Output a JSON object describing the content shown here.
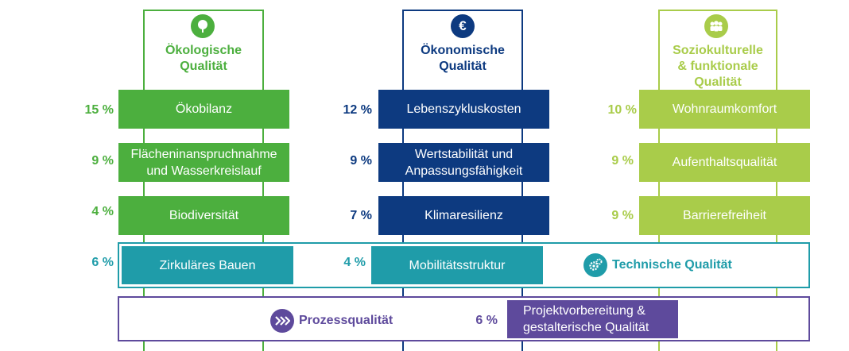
{
  "colors": {
    "ecological": "#4caf3e",
    "economic": "#0d3a80",
    "sociocultural": "#a9cc4a",
    "technical": "#1f9ca9",
    "process": "#5e4a9c"
  },
  "pillars": {
    "ecological": {
      "icon": "tree-icon",
      "title_line1": "Ökologische",
      "title_line2": "Qualität",
      "items": [
        {
          "pct": "15 %",
          "label": "Ökobilanz"
        },
        {
          "pct": "9 %",
          "label_line1": "Flächeninanspruchnahme",
          "label_line2": "und Wasserkreislauf"
        },
        {
          "pct": "4 %",
          "label": "Biodiversität"
        }
      ]
    },
    "economic": {
      "icon": "euro-icon",
      "title_line1": "Ökonomische",
      "title_line2": "Qualität",
      "items": [
        {
          "pct": "12 %",
          "label": "Lebenszykluskosten"
        },
        {
          "pct": "9 %",
          "label_line1": "Wertstabilität und",
          "label_line2": "Anpassungsfähigkeit"
        },
        {
          "pct": "7 %",
          "label": "Klimaresilienz"
        }
      ]
    },
    "sociocultural": {
      "icon": "people-icon",
      "title_line1": "Soziokulturelle",
      "title_line2": "& funktionale",
      "title_line3": "Qualität",
      "items": [
        {
          "pct": "10 %",
          "label": "Wohnraumkomfort"
        },
        {
          "pct": "9 %",
          "label": "Aufenthaltsqualität"
        },
        {
          "pct": "9 %",
          "label": "Barrierefreiheit"
        }
      ]
    }
  },
  "technical": {
    "icon": "gears-icon",
    "title": "Technische Qualität",
    "items": [
      {
        "pct": "6 %",
        "label": "Zirkuläres Bauen"
      },
      {
        "pct": "4 %",
        "label": "Mobilitätsstruktur"
      }
    ]
  },
  "process": {
    "icon": "chevrons-icon",
    "title": "Prozessqualität",
    "item": {
      "pct": "6 %",
      "label_line1": "Projektvorbereitung &",
      "label_line2": "gestalterische Qualität"
    }
  }
}
